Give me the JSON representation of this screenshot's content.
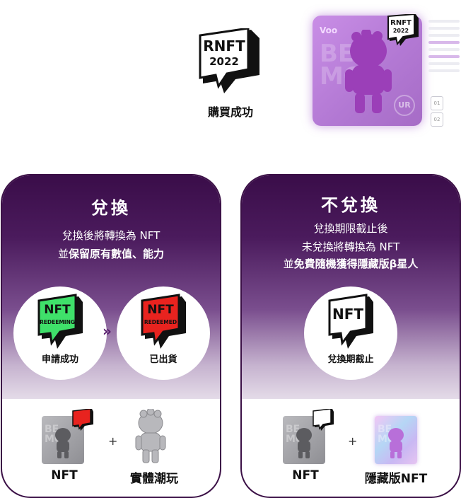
{
  "top": {
    "badge_line1": "RNFT",
    "badge_line2": "2022",
    "label": "購買成功",
    "card_logo": "Voo",
    "card_bg_text": "BET MO",
    "card_rarity": "UR",
    "spec_box_1": "01",
    "spec_box_2": "02"
  },
  "left_panel": {
    "title": "兌換",
    "line1": "兌換後將轉換為 NFT",
    "line2_prefix": "並",
    "line2_bold": "保留原有數值、能力",
    "step1_badge1": "NFT",
    "step1_badge2": "REDEEMING",
    "step1_caption": "申請成功",
    "arrow": "»",
    "step2_badge1": "NFT",
    "step2_badge2": "REDEEMED",
    "step2_caption": "已出貨",
    "item1_label": "NFT",
    "plus": "+",
    "item2_label": "實體潮玩"
  },
  "right_panel": {
    "title": "不兌換",
    "line1": "兌換期限截止後",
    "line2": "未兌換將轉換為 NFT",
    "line3_prefix": "並",
    "line3_bold": "免費隨機獲得隱藏版",
    "line3_suffix": "β星人",
    "step_badge": "NFT",
    "step_caption": "兌換期截止",
    "item1_label": "NFT",
    "plus": "+",
    "item2_label": "隱藏版NFT"
  },
  "colors": {
    "panel_border": "#3b1046",
    "panel_dark": "#3a0d49",
    "redeeming_green": "#3fe06a",
    "redeemed_red": "#e8231f",
    "card_purple": "#b379d4"
  }
}
